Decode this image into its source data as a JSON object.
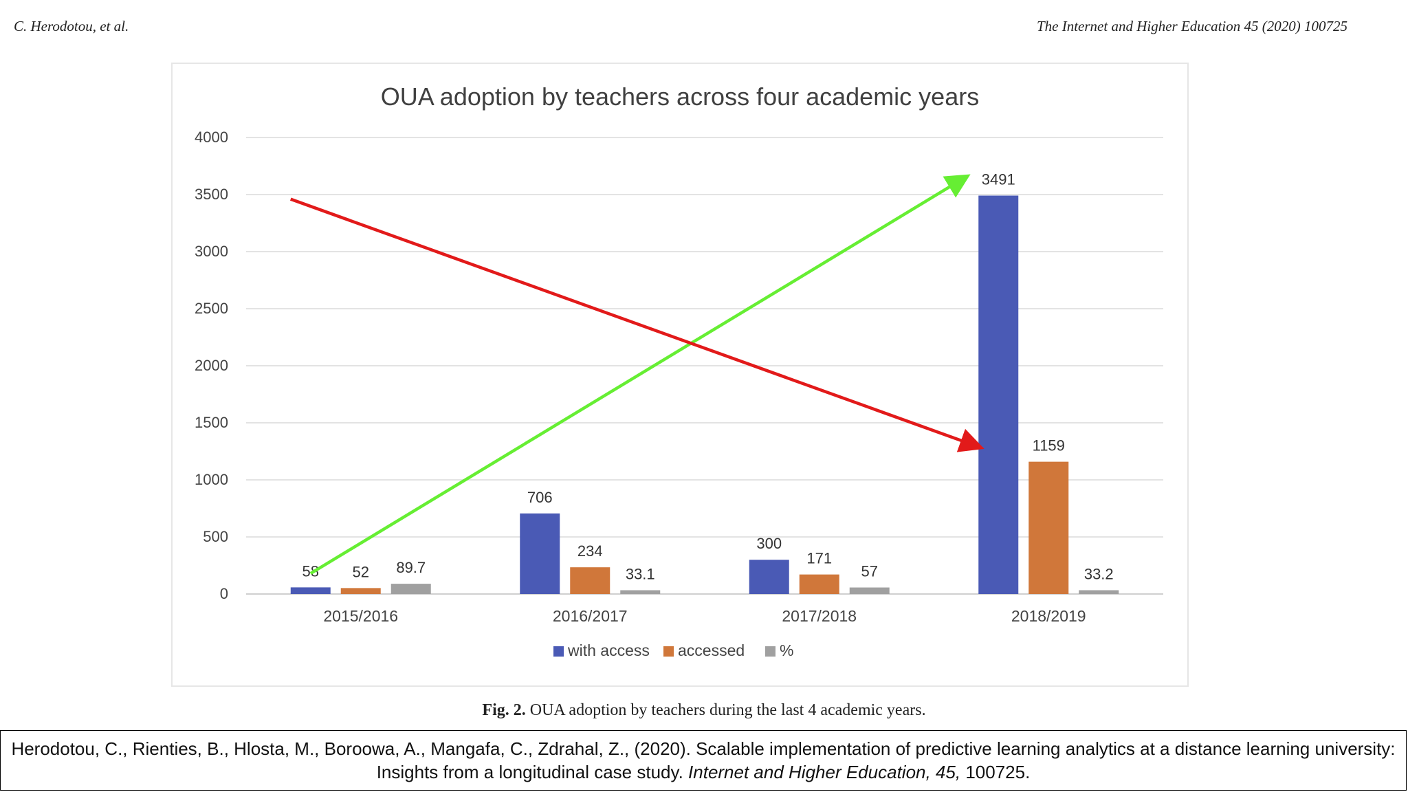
{
  "header": {
    "left": "C. Herodotou, et al.",
    "right": "The Internet and Higher Education 45 (2020) 100725"
  },
  "caption": {
    "label": "Fig. 2.",
    "text": "OUA adoption by teachers during the last 4 academic years."
  },
  "citation": {
    "main": "Herodotou, C., Rienties, B., Hlosta, M., Boroowa, A., Mangafa, C., Zdrahal, Z., (2020). Scalable implementation of predictive learning analytics at a distance learning university: Insights from a longitudinal case study.",
    "journal": "Internet and Higher Education, 45,",
    "tail": "100725."
  },
  "chart_data": {
    "type": "bar",
    "title": "OUA adoption by teachers across four academic years",
    "xlabel": "",
    "ylabel": "",
    "categories": [
      "2015/2016",
      "2016/2017",
      "2017/2018",
      "2018/2019"
    ],
    "series": [
      {
        "name": "with access",
        "values": [
          58,
          706,
          300,
          3491
        ],
        "labels": [
          "58",
          "706",
          "300",
          "3491"
        ],
        "color": "#4a5ab5"
      },
      {
        "name": "accessed",
        "values": [
          52,
          234,
          171,
          1159
        ],
        "labels": [
          "52",
          "234",
          "171",
          "1159"
        ],
        "color": "#d0773a"
      },
      {
        "name": "%",
        "values": [
          89.7,
          33.1,
          57,
          33.2
        ],
        "labels": [
          "89.7",
          "33.1",
          "57",
          "33.2"
        ],
        "color": "#a0a0a0"
      }
    ],
    "ylim": [
      0,
      4000
    ],
    "yticks": [
      "0",
      "500",
      "1000",
      "1500",
      "2000",
      "2500",
      "3000",
      "3500",
      "4000"
    ],
    "grid": true,
    "legend": "bottom",
    "annotations": [
      {
        "name": "green-arrow",
        "color": "#66ee33",
        "from": {
          "category": "2015/2016",
          "y": 180
        },
        "to": {
          "category": "2018/2019",
          "y": 3650
        }
      },
      {
        "name": "red-arrow",
        "color": "#e21a1a",
        "from": {
          "category": "2015/2016",
          "y": 3460
        },
        "to": {
          "category": "2018/2019",
          "y": 1290
        }
      }
    ]
  }
}
